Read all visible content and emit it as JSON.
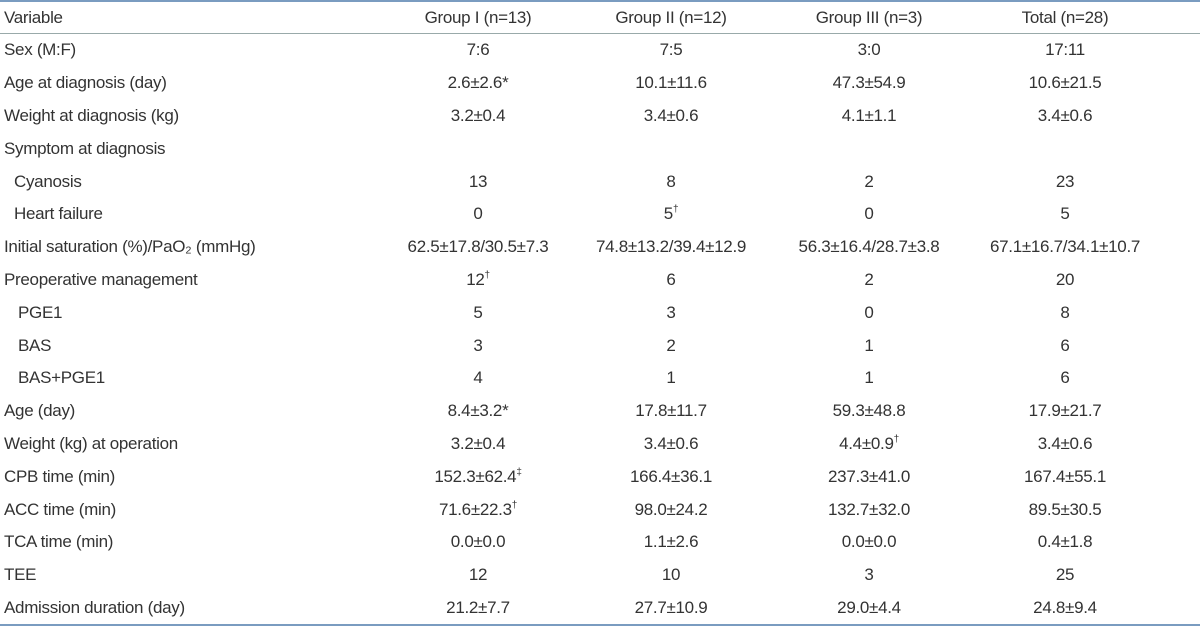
{
  "table": {
    "header": [
      "Variable",
      "Group I (n=13)",
      "Group II (n=12)",
      "Group III (n=3)",
      "Total (n=28)"
    ],
    "rows": [
      [
        "Sex (M:F)",
        "7:6",
        "7:5",
        "3:0",
        "17:11"
      ],
      [
        "Age at diagnosis (day)",
        "2.6±2.6*",
        "10.1±11.6",
        "47.3±54.9",
        "10.6±21.5"
      ],
      [
        "Weight at diagnosis (kg)",
        "3.2±0.4",
        "3.4±0.6",
        "4.1±1.1",
        "3.4±0.6"
      ],
      [
        "Symptom at diagnosis"
      ],
      [
        "Cyanosis",
        "13",
        "8",
        "2",
        "23"
      ],
      [
        "Heart failure",
        "0",
        {
          "text": "5",
          "sup": "†"
        },
        "0",
        "5"
      ],
      [
        "Initial saturation (%)/PaO₂ (mmHg)",
        "62.5±17.8/30.5±7.3",
        "74.8±13.2/39.4±12.9",
        "56.3±16.4/28.7±3.8",
        "67.1±16.7/34.1±10.7"
      ],
      [
        "Preoperative management",
        {
          "text": "12",
          "sup": "†"
        },
        "6",
        "2",
        "20"
      ],
      [
        "PGE1",
        "5",
        "3",
        "0",
        "8"
      ],
      [
        "BAS",
        "3",
        "2",
        "1",
        "6"
      ],
      [
        "BAS+PGE1",
        "4",
        "1",
        "1",
        "6"
      ],
      [
        "Age (day)",
        "8.4±3.2*",
        "17.8±11.7",
        "59.3±48.8",
        "17.9±21.7"
      ],
      [
        "Weight (kg) at operation",
        "3.2±0.4",
        "3.4±0.6",
        {
          "text": "4.4±0.9",
          "sup": "†"
        },
        "3.4±0.6"
      ],
      [
        "CPB time (min)",
        {
          "text": "152.3±62.4",
          "sup": "‡"
        },
        "166.4±36.1",
        "237.3±41.0",
        "167.4±55.1"
      ],
      [
        "ACC time (min)",
        {
          "text": "71.6±22.3",
          "sup": "†"
        },
        "98.0±24.2",
        "132.7±32.0",
        "89.5±30.5"
      ],
      [
        "TCA time (min)",
        "0.0±0.0",
        "1.1±2.6",
        "0.0±0.0",
        "0.4±1.8"
      ],
      [
        "TEE",
        "12",
        "10",
        "3",
        "25"
      ],
      [
        "Admission duration (day)",
        "21.2±7.7",
        "27.7±10.9",
        "29.0±4.4",
        "24.8±9.4"
      ]
    ]
  }
}
